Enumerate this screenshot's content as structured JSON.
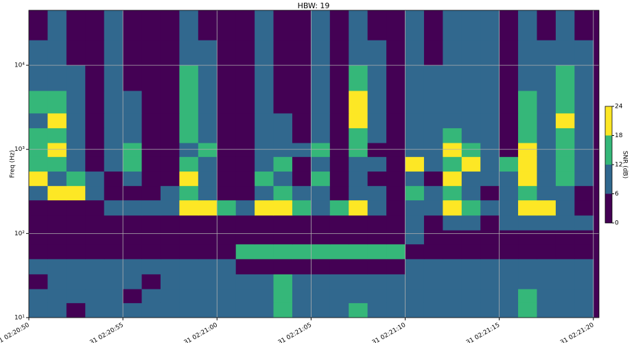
{
  "chart_data": {
    "type": "heatmap",
    "title": "HBW: 19",
    "y_label": "Freq (Hz)",
    "log_y": true,
    "grid": true,
    "xlim": [
      0,
      30.3
    ],
    "ylim": [
      10,
      45000
    ],
    "xticks": [
      {
        "value": 0,
        "label": "31 02:20:50"
      },
      {
        "value": 5,
        "label": "31 02:20:55"
      },
      {
        "value": 10,
        "label": "31 02:21:00"
      },
      {
        "value": 15,
        "label": "31 02:21:05"
      },
      {
        "value": 20,
        "label": "31 02:21:10"
      },
      {
        "value": 25,
        "label": "31 02:21:15"
      },
      {
        "value": 30,
        "label": "31 02:21:20"
      }
    ],
    "yticks": [
      {
        "value": 10,
        "label": "10¹"
      },
      {
        "value": 100,
        "label": "10²"
      },
      {
        "value": 1000,
        "label": "10³"
      },
      {
        "value": 10000,
        "label": "10⁴"
      }
    ],
    "x_edges": [
      0,
      1,
      2,
      3,
      4,
      5,
      6,
      7,
      8,
      9,
      10,
      11,
      12,
      13,
      14,
      15,
      16,
      17,
      18,
      19,
      20,
      21,
      22,
      23,
      24,
      25,
      26,
      27,
      28,
      29,
      30
    ],
    "y_edges": [
      10,
      15,
      22,
      33,
      50,
      75,
      110,
      165,
      250,
      370,
      550,
      820,
      1200,
      1800,
      2700,
      5000,
      10000,
      20000,
      45000
    ],
    "values": [
      [
        9,
        9,
        3,
        9,
        9,
        9,
        9,
        9,
        9,
        9,
        9,
        9,
        9,
        15,
        9,
        9,
        9,
        15,
        9,
        9,
        9,
        9,
        9,
        9,
        9,
        9,
        15,
        9,
        9,
        9
      ],
      [
        9,
        9,
        9,
        9,
        9,
        3,
        9,
        9,
        9,
        9,
        9,
        9,
        9,
        15,
        9,
        9,
        9,
        9,
        9,
        9,
        9,
        9,
        9,
        9,
        9,
        9,
        15,
        9,
        9,
        9
      ],
      [
        3,
        9,
        9,
        9,
        9,
        9,
        3,
        9,
        9,
        9,
        9,
        9,
        9,
        15,
        9,
        9,
        9,
        9,
        9,
        9,
        9,
        9,
        9,
        9,
        9,
        9,
        9,
        9,
        9,
        9
      ],
      [
        9,
        9,
        9,
        9,
        9,
        9,
        9,
        9,
        9,
        9,
        9,
        3,
        3,
        3,
        3,
        3,
        3,
        3,
        3,
        3,
        9,
        9,
        9,
        9,
        9,
        9,
        9,
        9,
        9,
        9
      ],
      [
        3,
        3,
        3,
        3,
        3,
        3,
        3,
        3,
        3,
        3,
        3,
        15,
        15,
        15,
        15,
        15,
        15,
        15,
        15,
        15,
        3,
        3,
        3,
        3,
        3,
        3,
        3,
        3,
        3,
        3
      ],
      [
        3,
        3,
        3,
        3,
        3,
        3,
        3,
        3,
        3,
        3,
        3,
        3,
        3,
        3,
        3,
        3,
        3,
        3,
        3,
        3,
        9,
        3,
        3,
        3,
        3,
        3,
        3,
        3,
        3,
        3
      ],
      [
        3,
        3,
        3,
        3,
        3,
        3,
        3,
        3,
        3,
        3,
        3,
        3,
        3,
        3,
        3,
        3,
        3,
        3,
        3,
        3,
        9,
        3,
        9,
        9,
        3,
        9,
        9,
        9,
        9,
        9
      ],
      [
        3,
        3,
        3,
        3,
        9,
        9,
        9,
        9,
        21,
        21,
        15,
        9,
        21,
        21,
        15,
        9,
        15,
        21,
        9,
        3,
        9,
        9,
        21,
        15,
        9,
        9,
        21,
        21,
        9,
        3
      ],
      [
        9,
        21,
        21,
        9,
        3,
        3,
        3,
        9,
        15,
        9,
        3,
        3,
        9,
        15,
        9,
        9,
        3,
        9,
        9,
        3,
        15,
        9,
        15,
        9,
        3,
        9,
        15,
        9,
        9,
        3
      ],
      [
        21,
        9,
        15,
        9,
        3,
        9,
        3,
        3,
        21,
        9,
        3,
        3,
        15,
        9,
        3,
        15,
        3,
        9,
        3,
        3,
        9,
        3,
        21,
        9,
        9,
        9,
        21,
        9,
        15,
        9
      ],
      [
        15,
        15,
        9,
        3,
        9,
        15,
        3,
        3,
        15,
        9,
        3,
        3,
        9,
        15,
        3,
        9,
        3,
        9,
        9,
        3,
        21,
        9,
        15,
        21,
        9,
        15,
        21,
        9,
        15,
        9
      ],
      [
        15,
        21,
        9,
        3,
        9,
        15,
        3,
        3,
        9,
        15,
        3,
        3,
        9,
        9,
        9,
        15,
        3,
        15,
        3,
        3,
        9,
        9,
        21,
        15,
        9,
        3,
        21,
        9,
        15,
        9
      ],
      [
        15,
        15,
        9,
        3,
        9,
        9,
        3,
        3,
        15,
        9,
        3,
        3,
        9,
        9,
        3,
        9,
        3,
        15,
        9,
        3,
        9,
        9,
        15,
        9,
        9,
        3,
        15,
        9,
        15,
        9
      ],
      [
        9,
        21,
        9,
        3,
        9,
        9,
        3,
        3,
        15,
        9,
        3,
        3,
        9,
        9,
        3,
        9,
        3,
        21,
        9,
        3,
        9,
        9,
        9,
        9,
        9,
        3,
        15,
        9,
        21,
        9
      ],
      [
        15,
        15,
        9,
        3,
        9,
        9,
        3,
        3,
        15,
        9,
        3,
        3,
        9,
        3,
        3,
        9,
        3,
        21,
        9,
        3,
        9,
        9,
        9,
        9,
        9,
        3,
        15,
        9,
        15,
        9
      ],
      [
        9,
        9,
        9,
        3,
        9,
        3,
        3,
        3,
        15,
        9,
        3,
        3,
        9,
        3,
        3,
        9,
        3,
        15,
        9,
        3,
        9,
        9,
        9,
        9,
        9,
        3,
        9,
        9,
        15,
        9
      ],
      [
        9,
        9,
        3,
        3,
        9,
        3,
        3,
        3,
        9,
        9,
        3,
        3,
        9,
        3,
        3,
        9,
        3,
        9,
        9,
        3,
        9,
        3,
        9,
        9,
        9,
        3,
        9,
        9,
        9,
        9
      ],
      [
        3,
        9,
        3,
        3,
        9,
        3,
        3,
        3,
        9,
        3,
        3,
        3,
        9,
        3,
        3,
        9,
        3,
        9,
        3,
        3,
        9,
        3,
        9,
        9,
        9,
        3,
        9,
        3,
        9,
        3
      ]
    ],
    "colorbar": {
      "label": "SNR (dB)",
      "ticks": [
        0,
        6,
        12,
        18,
        24
      ],
      "colors": [
        "#440154",
        "#31688e",
        "#35b779",
        "#fde725"
      ]
    }
  }
}
